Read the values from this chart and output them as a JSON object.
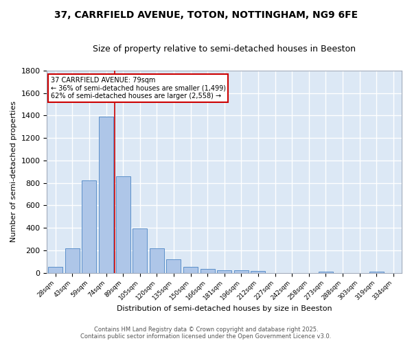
{
  "title_line1": "37, CARRFIELD AVENUE, TOTON, NOTTINGHAM, NG9 6FE",
  "title_line2": "Size of property relative to semi-detached houses in Beeston",
  "xlabel": "Distribution of semi-detached houses by size in Beeston",
  "ylabel": "Number of semi-detached properties",
  "categories": [
    "28sqm",
    "43sqm",
    "59sqm",
    "74sqm",
    "89sqm",
    "105sqm",
    "120sqm",
    "135sqm",
    "150sqm",
    "166sqm",
    "181sqm",
    "196sqm",
    "212sqm",
    "227sqm",
    "242sqm",
    "258sqm",
    "273sqm",
    "288sqm",
    "303sqm",
    "319sqm",
    "334sqm"
  ],
  "values": [
    50,
    220,
    820,
    1390,
    860,
    395,
    220,
    120,
    50,
    35,
    25,
    20,
    15,
    0,
    0,
    0,
    10,
    0,
    0,
    10,
    0
  ],
  "bar_color": "#aec6e8",
  "bar_edge_color": "#5b8fc9",
  "bg_color": "#dce8f5",
  "grid_color": "#ffffff",
  "fig_bg_color": "#ffffff",
  "vline_color": "#cc0000",
  "vline_x": 3.5,
  "annotation_title": "37 CARRFIELD AVENUE: 79sqm",
  "annotation_line1": "← 36% of semi-detached houses are smaller (1,499)",
  "annotation_line2": "62% of semi-detached houses are larger (2,558) →",
  "annotation_box_color": "#ffffff",
  "annotation_edge_color": "#cc0000",
  "footer_line1": "Contains HM Land Registry data © Crown copyright and database right 2025.",
  "footer_line2": "Contains public sector information licensed under the Open Government Licence v3.0.",
  "ylim": [
    0,
    1800
  ],
  "yticks": [
    0,
    200,
    400,
    600,
    800,
    1000,
    1200,
    1400,
    1600,
    1800
  ],
  "title1_fontsize": 10,
  "title2_fontsize": 9,
  "xlabel_fontsize": 8,
  "ylabel_fontsize": 8,
  "xtick_fontsize": 6.5,
  "ytick_fontsize": 8,
  "footer_fontsize": 6,
  "annot_fontsize": 7
}
